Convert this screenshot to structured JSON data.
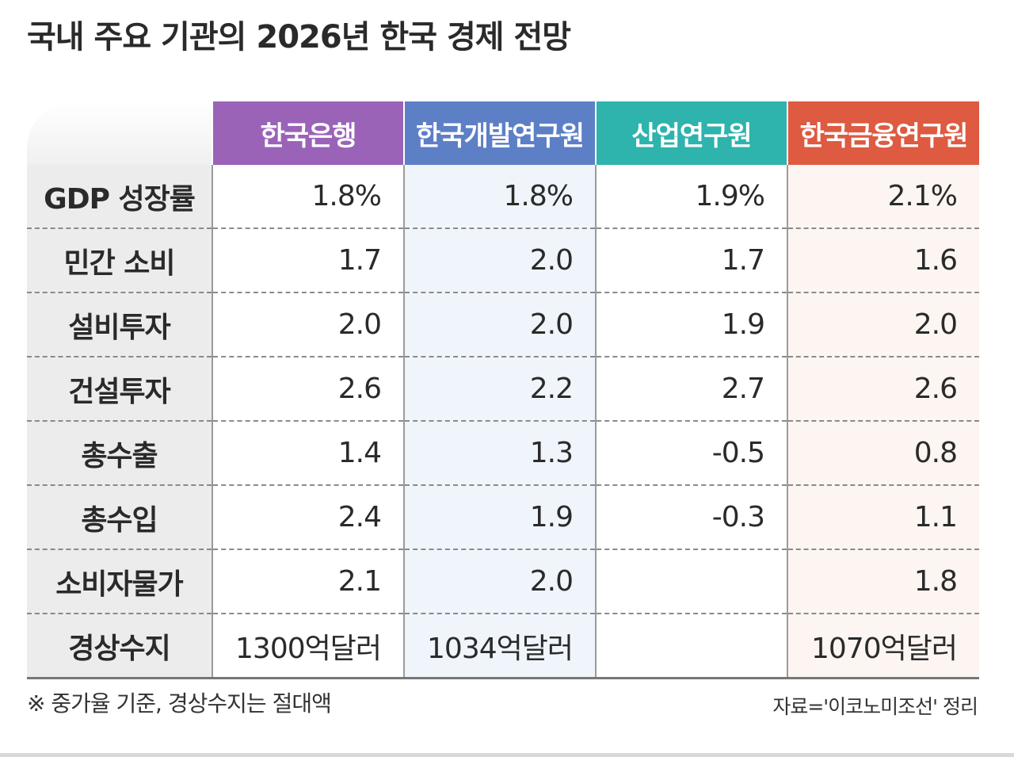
{
  "title": "국내 주요 기관의 2026년 한국 경제 전망",
  "chart_data": {
    "type": "table",
    "title": "국내 주요 기관의 2026년 한국 경제 전망",
    "columns": [
      "한국은행",
      "한국개발연구원",
      "산업연구원",
      "한국금융연구원"
    ],
    "column_colors": [
      "#9a63b8",
      "#5d7fc6",
      "#2eb3ad",
      "#de5a40"
    ],
    "rows": [
      {
        "label": "GDP 성장률",
        "values": [
          "1.8%",
          "1.8%",
          "1.9%",
          "2.1%"
        ]
      },
      {
        "label": "민간 소비",
        "values": [
          "1.7",
          "2.0",
          "1.7",
          "1.6"
        ]
      },
      {
        "label": "설비투자",
        "values": [
          "2.0",
          "2.0",
          "1.9",
          "2.0"
        ]
      },
      {
        "label": "건설투자",
        "values": [
          "2.6",
          "2.2",
          "2.7",
          "2.6"
        ]
      },
      {
        "label": "총수출",
        "values": [
          "1.4",
          "1.3",
          "-0.5",
          "0.8"
        ]
      },
      {
        "label": "총수입",
        "values": [
          "2.4",
          "1.9",
          "-0.3",
          "1.1"
        ]
      },
      {
        "label": "소비자물가",
        "values": [
          "2.1",
          "2.0",
          "",
          "1.8"
        ]
      },
      {
        "label": "경상수지",
        "values": [
          "1300억달러",
          "1034억달러",
          "",
          "1070억달러"
        ]
      }
    ]
  },
  "note": "※ 중가율 기준, 경상수지는 절대액",
  "source": "자료='이코노미조선' 정리"
}
